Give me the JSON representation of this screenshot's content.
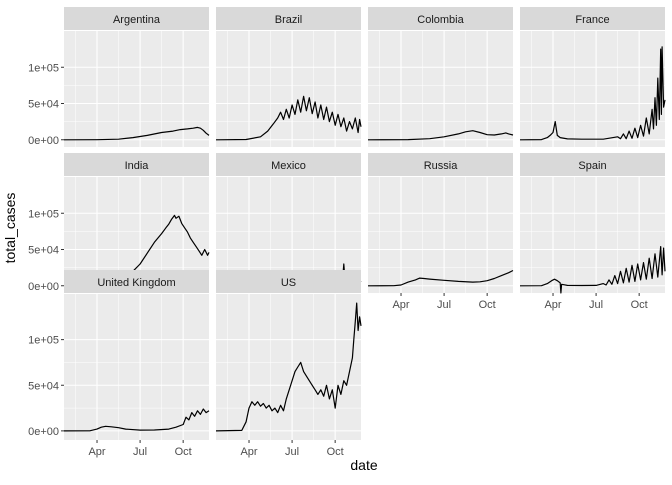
{
  "chart_data": {
    "type": "line",
    "xlabel": "date",
    "ylabel": "total_cases",
    "x_ticks": [
      "Apr",
      "Jul",
      "Oct"
    ],
    "x_tick_months": [
      3,
      6,
      9
    ],
    "x_range_months": [
      0.7,
      10.8
    ],
    "y_ticks": [
      "0e+00",
      "5e+04",
      "1e+05"
    ],
    "y_tick_values": [
      0,
      50000,
      100000
    ],
    "ylim": [
      -10000,
      150000
    ],
    "grid": true,
    "panel_color": "#ebebeb",
    "strip_color": "#d9d9d9",
    "line_color": "#000000",
    "panels": [
      {
        "name": "Argentina",
        "points": [
          [
            0.7,
            0
          ],
          [
            3.0,
            100
          ],
          [
            4.5,
            800
          ],
          [
            5.5,
            3000
          ],
          [
            6.5,
            6000
          ],
          [
            7.5,
            10000
          ],
          [
            8.3,
            12000
          ],
          [
            8.8,
            14000
          ],
          [
            9.3,
            15000
          ],
          [
            9.7,
            16000
          ],
          [
            10.0,
            17000
          ],
          [
            10.2,
            16000
          ],
          [
            10.4,
            13000
          ],
          [
            10.6,
            9000
          ],
          [
            10.8,
            6000
          ]
        ]
      },
      {
        "name": "Brazil",
        "points": [
          [
            0.7,
            0
          ],
          [
            2.8,
            300
          ],
          [
            3.8,
            4000
          ],
          [
            4.3,
            12000
          ],
          [
            4.7,
            22000
          ],
          [
            5.0,
            30000
          ],
          [
            5.2,
            38000
          ],
          [
            5.4,
            28000
          ],
          [
            5.6,
            42000
          ],
          [
            5.8,
            30000
          ],
          [
            6.0,
            48000
          ],
          [
            6.2,
            35000
          ],
          [
            6.4,
            55000
          ],
          [
            6.6,
            38000
          ],
          [
            6.8,
            60000
          ],
          [
            7.0,
            40000
          ],
          [
            7.2,
            58000
          ],
          [
            7.4,
            36000
          ],
          [
            7.6,
            52000
          ],
          [
            7.8,
            30000
          ],
          [
            8.0,
            48000
          ],
          [
            8.2,
            28000
          ],
          [
            8.4,
            45000
          ],
          [
            8.6,
            25000
          ],
          [
            8.8,
            38000
          ],
          [
            9.0,
            20000
          ],
          [
            9.2,
            35000
          ],
          [
            9.4,
            18000
          ],
          [
            9.6,
            30000
          ],
          [
            9.8,
            12000
          ],
          [
            10.0,
            25000
          ],
          [
            10.2,
            15000
          ],
          [
            10.4,
            30000
          ],
          [
            10.6,
            10000
          ],
          [
            10.7,
            28000
          ],
          [
            10.8,
            18000
          ]
        ]
      },
      {
        "name": "Colombia",
        "points": [
          [
            0.7,
            0
          ],
          [
            3.5,
            200
          ],
          [
            5.0,
            1500
          ],
          [
            6.0,
            4000
          ],
          [
            7.0,
            8000
          ],
          [
            7.5,
            11000
          ],
          [
            8.0,
            12500
          ],
          [
            8.5,
            10000
          ],
          [
            9.0,
            7000
          ],
          [
            9.5,
            6500
          ],
          [
            10.0,
            8000
          ],
          [
            10.3,
            9500
          ],
          [
            10.5,
            8000
          ],
          [
            10.8,
            6500
          ]
        ]
      },
      {
        "name": "France",
        "points": [
          [
            0.7,
            0
          ],
          [
            2.2,
            200
          ],
          [
            2.6,
            3000
          ],
          [
            2.8,
            6000
          ],
          [
            3.0,
            10000
          ],
          [
            3.15,
            25000
          ],
          [
            3.3,
            6000
          ],
          [
            3.5,
            3000
          ],
          [
            4.0,
            1200
          ],
          [
            5.0,
            800
          ],
          [
            6.5,
            700
          ],
          [
            7.5,
            4000
          ],
          [
            7.7,
            1500
          ],
          [
            7.9,
            8000
          ],
          [
            8.1,
            1500
          ],
          [
            8.3,
            12000
          ],
          [
            8.5,
            2000
          ],
          [
            8.7,
            16000
          ],
          [
            8.9,
            3000
          ],
          [
            9.1,
            20000
          ],
          [
            9.3,
            5000
          ],
          [
            9.5,
            30000
          ],
          [
            9.7,
            8000
          ],
          [
            9.9,
            42000
          ],
          [
            10.0,
            15000
          ],
          [
            10.1,
            58000
          ],
          [
            10.2,
            20000
          ],
          [
            10.3,
            85000
          ],
          [
            10.4,
            28000
          ],
          [
            10.5,
            125000
          ],
          [
            10.55,
            35000
          ],
          [
            10.6,
            128000
          ],
          [
            10.7,
            45000
          ],
          [
            10.8,
            55000
          ]
        ]
      },
      {
        "name": "India",
        "points": [
          [
            0.7,
            0
          ],
          [
            3.0,
            100
          ],
          [
            4.0,
            2000
          ],
          [
            4.5,
            6000
          ],
          [
            5.0,
            12000
          ],
          [
            5.5,
            20000
          ],
          [
            6.0,
            30000
          ],
          [
            6.5,
            45000
          ],
          [
            7.0,
            60000
          ],
          [
            7.5,
            72000
          ],
          [
            7.8,
            80000
          ],
          [
            8.0,
            85000
          ],
          [
            8.2,
            92000
          ],
          [
            8.4,
            97000
          ],
          [
            8.5,
            93000
          ],
          [
            8.7,
            96000
          ],
          [
            8.9,
            86000
          ],
          [
            9.1,
            80000
          ],
          [
            9.3,
            74000
          ],
          [
            9.5,
            66000
          ],
          [
            9.7,
            60000
          ],
          [
            9.9,
            54000
          ],
          [
            10.1,
            48000
          ],
          [
            10.3,
            42000
          ],
          [
            10.5,
            50000
          ],
          [
            10.7,
            42000
          ],
          [
            10.8,
            46000
          ]
        ]
      },
      {
        "name": "Mexico",
        "points": [
          [
            0.7,
            0
          ],
          [
            3.0,
            200
          ],
          [
            4.0,
            1500
          ],
          [
            5.0,
            3000
          ],
          [
            6.0,
            5000
          ],
          [
            7.0,
            6500
          ],
          [
            8.0,
            6000
          ],
          [
            9.0,
            5000
          ],
          [
            9.5,
            4000
          ],
          [
            9.6,
            30000
          ],
          [
            9.7,
            4000
          ],
          [
            10.0,
            4500
          ],
          [
            10.3,
            6000
          ],
          [
            10.5,
            3000
          ],
          [
            10.7,
            7000
          ],
          [
            10.8,
            5000
          ]
        ]
      },
      {
        "name": "Russia",
        "points": [
          [
            0.7,
            0
          ],
          [
            2.5,
            100
          ],
          [
            3.0,
            1000
          ],
          [
            3.5,
            5000
          ],
          [
            4.0,
            8000
          ],
          [
            4.3,
            10500
          ],
          [
            4.6,
            10000
          ],
          [
            5.0,
            9200
          ],
          [
            6.0,
            7500
          ],
          [
            7.0,
            6000
          ],
          [
            8.0,
            5000
          ],
          [
            8.5,
            5500
          ],
          [
            9.0,
            7000
          ],
          [
            9.5,
            10000
          ],
          [
            10.0,
            14000
          ],
          [
            10.5,
            18000
          ],
          [
            10.8,
            21000
          ]
        ]
      },
      {
        "name": "Spain",
        "points": [
          [
            0.7,
            0
          ],
          [
            2.2,
            100
          ],
          [
            2.6,
            3000
          ],
          [
            2.9,
            7000
          ],
          [
            3.1,
            9000
          ],
          [
            3.3,
            7000
          ],
          [
            3.5,
            4000
          ],
          [
            3.55,
            -10000
          ],
          [
            3.6,
            2000
          ],
          [
            4.0,
            500
          ],
          [
            5.0,
            300
          ],
          [
            6.0,
            500
          ],
          [
            6.5,
            3000
          ],
          [
            6.7,
            1000
          ],
          [
            6.9,
            8000
          ],
          [
            7.1,
            2000
          ],
          [
            7.3,
            14000
          ],
          [
            7.5,
            3000
          ],
          [
            7.7,
            20000
          ],
          [
            7.9,
            4000
          ],
          [
            8.1,
            24000
          ],
          [
            8.3,
            5000
          ],
          [
            8.5,
            28000
          ],
          [
            8.7,
            6000
          ],
          [
            8.9,
            30000
          ],
          [
            9.1,
            8000
          ],
          [
            9.3,
            32000
          ],
          [
            9.5,
            9000
          ],
          [
            9.7,
            38000
          ],
          [
            9.9,
            10000
          ],
          [
            10.1,
            44000
          ],
          [
            10.3,
            12000
          ],
          [
            10.5,
            54000
          ],
          [
            10.6,
            15000
          ],
          [
            10.7,
            52000
          ],
          [
            10.8,
            20000
          ]
        ]
      },
      {
        "name": "United Kingdom",
        "points": [
          [
            0.7,
            0
          ],
          [
            2.5,
            100
          ],
          [
            3.0,
            2000
          ],
          [
            3.3,
            4000
          ],
          [
            3.6,
            5000
          ],
          [
            4.0,
            4500
          ],
          [
            4.5,
            3500
          ],
          [
            5.0,
            2000
          ],
          [
            6.0,
            800
          ],
          [
            7.0,
            1000
          ],
          [
            8.0,
            2000
          ],
          [
            8.5,
            4000
          ],
          [
            9.0,
            7000
          ],
          [
            9.2,
            15000
          ],
          [
            9.4,
            12000
          ],
          [
            9.6,
            20000
          ],
          [
            9.8,
            16000
          ],
          [
            10.0,
            22000
          ],
          [
            10.2,
            18000
          ],
          [
            10.4,
            24000
          ],
          [
            10.6,
            20000
          ],
          [
            10.8,
            22000
          ]
        ]
      },
      {
        "name": "US",
        "points": [
          [
            0.7,
            0
          ],
          [
            2.5,
            500
          ],
          [
            2.8,
            10000
          ],
          [
            3.0,
            25000
          ],
          [
            3.2,
            32000
          ],
          [
            3.4,
            28000
          ],
          [
            3.6,
            32000
          ],
          [
            3.8,
            27000
          ],
          [
            4.0,
            30000
          ],
          [
            4.2,
            25000
          ],
          [
            4.4,
            28000
          ],
          [
            4.6,
            22000
          ],
          [
            4.8,
            25000
          ],
          [
            5.0,
            20000
          ],
          [
            5.2,
            28000
          ],
          [
            5.4,
            22000
          ],
          [
            5.6,
            35000
          ],
          [
            5.8,
            45000
          ],
          [
            6.0,
            55000
          ],
          [
            6.2,
            65000
          ],
          [
            6.4,
            70000
          ],
          [
            6.6,
            75000
          ],
          [
            6.8,
            65000
          ],
          [
            7.0,
            60000
          ],
          [
            7.2,
            55000
          ],
          [
            7.4,
            50000
          ],
          [
            7.6,
            45000
          ],
          [
            7.8,
            40000
          ],
          [
            8.0,
            45000
          ],
          [
            8.2,
            38000
          ],
          [
            8.4,
            50000
          ],
          [
            8.6,
            35000
          ],
          [
            8.8,
            45000
          ],
          [
            9.0,
            25000
          ],
          [
            9.2,
            50000
          ],
          [
            9.4,
            40000
          ],
          [
            9.6,
            55000
          ],
          [
            9.8,
            50000
          ],
          [
            10.0,
            65000
          ],
          [
            10.2,
            80000
          ],
          [
            10.3,
            100000
          ],
          [
            10.4,
            120000
          ],
          [
            10.5,
            140000
          ],
          [
            10.6,
            110000
          ],
          [
            10.7,
            125000
          ],
          [
            10.8,
            115000
          ]
        ]
      }
    ]
  }
}
